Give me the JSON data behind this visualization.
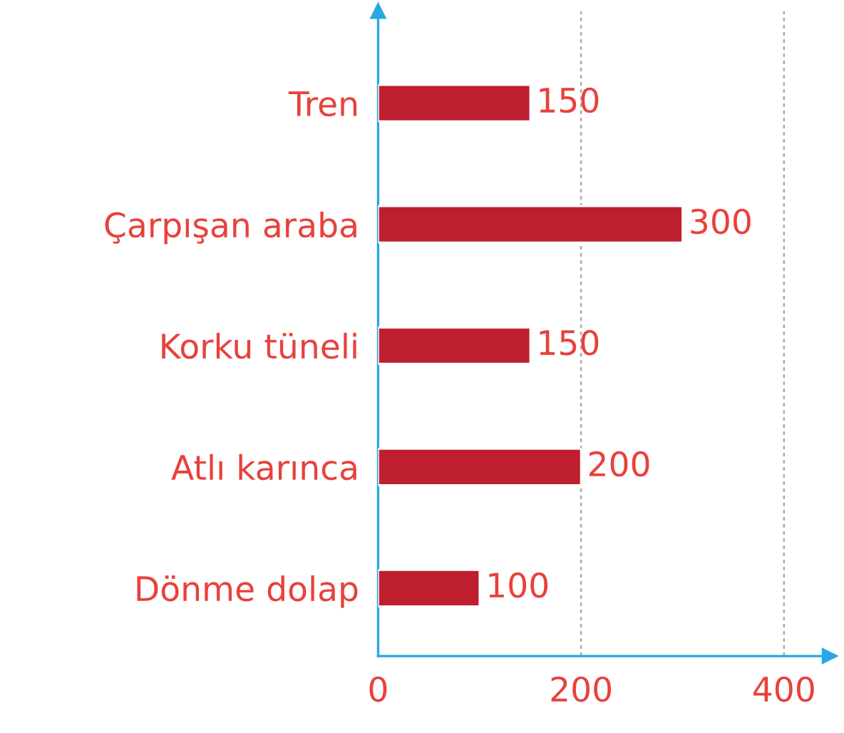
{
  "chart_data": {
    "type": "bar",
    "orientation": "horizontal",
    "categories": [
      "Tren",
      "Çarpışan araba",
      "Korku tüneli",
      "Atlı karınca",
      "Dönme dolap"
    ],
    "values": [
      150,
      300,
      150,
      200,
      100
    ],
    "color": "#be1e2d",
    "data_labels": true,
    "xlim": [
      0,
      445
    ],
    "xticks": [
      0,
      200,
      400
    ],
    "grid": "x"
  }
}
